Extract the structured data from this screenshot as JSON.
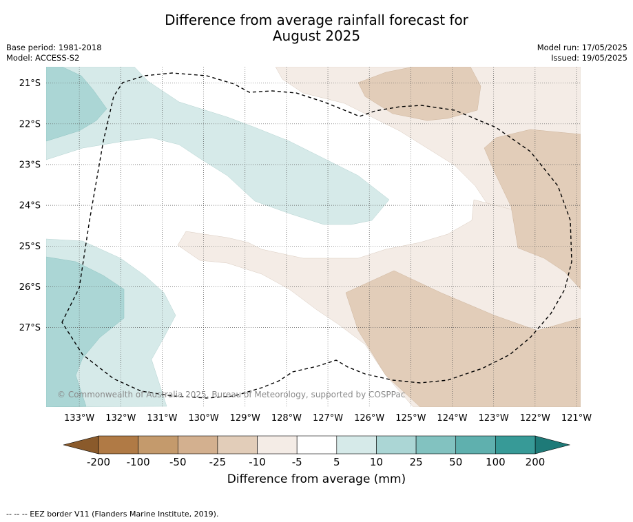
{
  "title": {
    "line1": "Difference from average rainfall forecast for",
    "line2": "August 2025"
  },
  "meta_left": {
    "base_period": "Base period: 1981-2018",
    "model": "Model: ACCESS-S2"
  },
  "meta_right": {
    "model_run": "Model run: 17/05/2025",
    "issued": "Issued: 19/05/2025"
  },
  "map": {
    "lon_range": [
      -133.8,
      -120.9
    ],
    "lat_range": [
      -28.95,
      -20.6
    ],
    "lon_ticks": [
      "133°W",
      "132°W",
      "131°W",
      "130°W",
      "129°W",
      "128°W",
      "127°W",
      "126°W",
      "125°W",
      "124°W",
      "123°W",
      "122°W",
      "121°W"
    ],
    "lat_ticks": [
      "21°S",
      "22°S",
      "23°S",
      "24°S",
      "25°S",
      "26°S",
      "27°S"
    ],
    "grid": true,
    "copyright": "© Commonwealth of Australia 2025, Bureau of Meteorology, supported by COSPPac"
  },
  "colorbar": {
    "ticks": [
      "-200",
      "-100",
      "-50",
      "-25",
      "-10",
      "-5",
      "5",
      "10",
      "25",
      "50",
      "100",
      "200"
    ],
    "label": "Difference from average (mm)",
    "colors": [
      "#8a5a2b",
      "#b07a45",
      "#c49a6c",
      "#d3b08f",
      "#e2cdb9",
      "#f4ece6",
      "#ffffff",
      "#d6eae9",
      "#abd6d5",
      "#82c2c0",
      "#5fb0ae",
      "#379a97",
      "#1e7a78"
    ]
  },
  "footer": "--  --  -- EEZ border V11 (Flanders Marine Institute, 2019)."
}
